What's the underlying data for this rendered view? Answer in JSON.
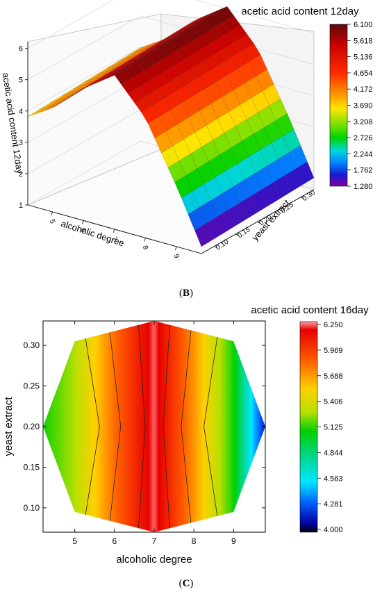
{
  "chart_data": [
    {
      "panel": "B",
      "type": "surface3d",
      "title": "acetic acid content 12day",
      "xlabel": "alcoholic degree",
      "ylabel": "yeast extract",
      "zlabel": "acetic acid content 12day",
      "x_ticks": [
        "5",
        "6",
        "7",
        "8",
        "9"
      ],
      "y_ticks": [
        "0.10",
        "0.15",
        "0.20",
        "0.25",
        "0.30"
      ],
      "z_ticks": [
        "1",
        "2",
        "3",
        "4",
        "5",
        "6"
      ],
      "zlim": [
        1,
        6.1
      ],
      "x": [
        4.2,
        5,
        6,
        7,
        8,
        9,
        9.8
      ],
      "y": [
        0.07,
        0.1,
        0.15,
        0.2,
        0.25,
        0.3,
        0.33
      ],
      "z_profile_along_x": [
        3.9,
        4.4,
        5.3,
        6.0,
        4.9,
        3.0,
        1.3
      ],
      "colorbar": {
        "min": 1.28,
        "max": 6.1,
        "labels": [
          "6.100",
          "5.618",
          "5.136",
          "4.654",
          "4.172",
          "3.690",
          "3.208",
          "2.726",
          "2.244",
          "1.762",
          "1.280"
        ]
      },
      "grid": true
    },
    {
      "panel": "C",
      "type": "contour",
      "title": "acetic acid content 16day",
      "xlabel": "alcoholic degree",
      "ylabel": "yeast extract",
      "x_ticks": [
        "5",
        "6",
        "7",
        "8",
        "9"
      ],
      "y_ticks": [
        "0.10",
        "0.15",
        "0.20",
        "0.25",
        "0.30"
      ],
      "xlim": [
        4.2,
        9.8
      ],
      "ylim": [
        0.07,
        0.33
      ],
      "domain": "octagon",
      "contour_levels_x": [
        5.2,
        5.85,
        6.6,
        7.4,
        7.95,
        8.65
      ],
      "profile_along_x": [
        {
          "x": 4.2,
          "z": 5.1
        },
        {
          "x": 5.0,
          "z": 5.3
        },
        {
          "x": 6.0,
          "z": 5.8
        },
        {
          "x": 7.0,
          "z": 6.22
        },
        {
          "x": 8.0,
          "z": 5.7
        },
        {
          "x": 9.0,
          "z": 5.1
        },
        {
          "x": 9.8,
          "z": 4.1
        }
      ],
      "colorbar": {
        "min": 4.0,
        "max": 6.25,
        "labels": [
          "6.250",
          "5.969",
          "5.688",
          "5.406",
          "5.125",
          "4.844",
          "4.563",
          "4.281",
          "4.000"
        ]
      }
    }
  ],
  "panel_labels": {
    "b": "B",
    "c": "C"
  }
}
